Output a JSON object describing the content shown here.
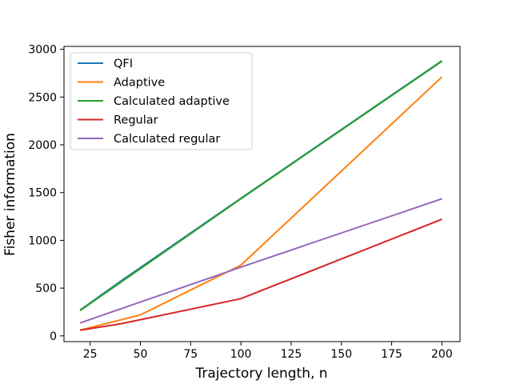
{
  "chart_data": {
    "type": "line",
    "title": "",
    "xlabel": "Trajectory length, n",
    "ylabel": "Fisher information",
    "xlim": [
      12,
      209
    ],
    "ylim": [
      -60,
      3030
    ],
    "xticks": [
      25,
      50,
      75,
      100,
      125,
      150,
      175,
      200
    ],
    "yticks": [
      0,
      500,
      1000,
      1500,
      2000,
      2500,
      3000
    ],
    "grid": false,
    "legend_position": "top-left",
    "series": [
      {
        "name": "QFI",
        "color": "#1f77b4",
        "x": [
          20,
          40,
          100,
          200
        ],
        "y": [
          270,
          570,
          1440,
          2880
        ]
      },
      {
        "name": "Adaptive",
        "color": "#ff7f0e",
        "x": [
          20,
          50,
          100,
          200
        ],
        "y": [
          60,
          220,
          740,
          2710
        ]
      },
      {
        "name": "Calculated adaptive",
        "color": "#2ca02c",
        "x": [
          20,
          100,
          200
        ],
        "y": [
          265,
          1435,
          2875
        ]
      },
      {
        "name": "Regular",
        "color": "#d62728",
        "x": [
          20,
          40,
          100,
          200
        ],
        "y": [
          60,
          125,
          390,
          1220
        ]
      },
      {
        "name": "Calculated regular",
        "color": "#9467bd",
        "x": [
          20,
          100,
          200
        ],
        "y": [
          135,
          720,
          1435
        ]
      }
    ]
  }
}
